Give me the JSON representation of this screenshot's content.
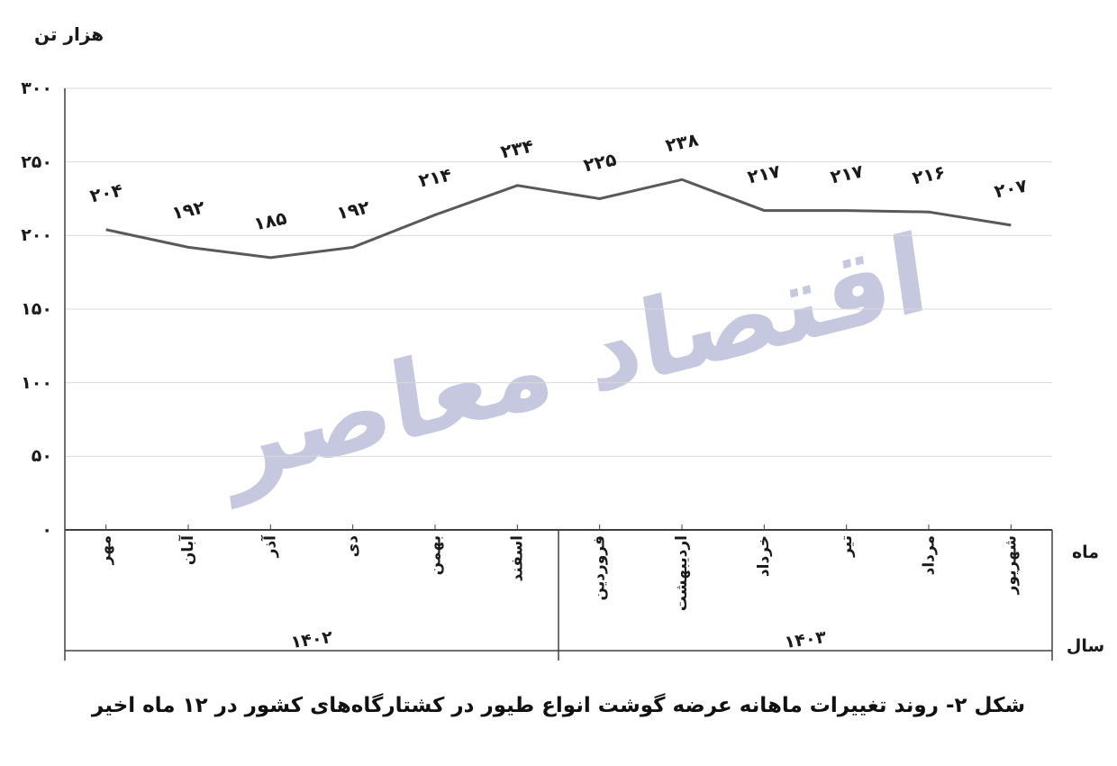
{
  "figure": {
    "unit_label": "هزار تن",
    "month_axis_label": "ماه",
    "year_axis_label": "سال",
    "caption": "شکل ۲- روند تغییرات ماهانه عرضه گوشت انواع طیور در کشتارگاه‌های کشور در ۱۲ ماه اخیر",
    "watermark": "اقتصاد معاصر"
  },
  "chart_data": {
    "type": "line",
    "title": "روند تغییرات ماهانه عرضه گوشت انواع طیور در کشتارگاه‌های کشور در ۱۲ ماه اخیر",
    "ylabel": "هزار تن",
    "xlabel": "ماه",
    "categories": [
      "مهر",
      "آبان",
      "آذر",
      "دی",
      "بهمن",
      "اسفند",
      "فروردین",
      "اردیبهشت",
      "خرداد",
      "تیر",
      "مرداد",
      "شهریور"
    ],
    "values": [
      204,
      192,
      185,
      192,
      214,
      234,
      225,
      238,
      217,
      217,
      216,
      207
    ],
    "value_labels": [
      "۲۰۴",
      "۱۹۲",
      "۱۸۵",
      "۱۹۲",
      "۲۱۴",
      "۲۳۴",
      "۲۲۵",
      "۲۳۸",
      "۲۱۷",
      "۲۱۷",
      "۲۱۶",
      "۲۰۷"
    ],
    "y_ticks": [
      {
        "value": 0,
        "label": "۰"
      },
      {
        "value": 50,
        "label": "۵۰"
      },
      {
        "value": 100,
        "label": "۱۰۰"
      },
      {
        "value": 150,
        "label": "۱۵۰"
      },
      {
        "value": 200,
        "label": "۲۰۰"
      },
      {
        "value": 250,
        "label": "۲۵۰"
      },
      {
        "value": 300,
        "label": "۳۰۰"
      }
    ],
    "ylim": [
      0,
      300
    ],
    "grid": "horizontal",
    "legend": "none",
    "year_groups": [
      {
        "label": "۱۴۰۲",
        "from": 0,
        "to": 5
      },
      {
        "label": "۱۴۰۳",
        "from": 6,
        "to": 11
      }
    ],
    "colors": {
      "line": "#595959",
      "grid": "#d9d9d9",
      "axis": "#404040",
      "text": "#1a1a1a",
      "watermark": "#c6c8df"
    }
  }
}
